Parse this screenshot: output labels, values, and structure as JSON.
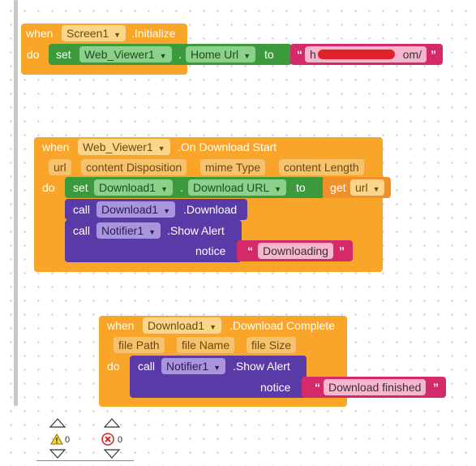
{
  "block1": {
    "when": "when",
    "component": "Screen1",
    "event": ".Initialize",
    "do": "do",
    "set": "set",
    "target": "Web_Viewer1",
    "dot": ".",
    "property": "Home Url",
    "to": "to",
    "text_value_start": "h",
    "text_value_end": "om/"
  },
  "block2": {
    "when": "when",
    "component": "Web_Viewer1",
    "event": ".On Download Start",
    "params": [
      "url",
      "content Disposition",
      "mime Type",
      "content Length"
    ],
    "do": "do",
    "set": "set",
    "target": "Download1",
    "dot": ".",
    "property": "Download URL",
    "to": "to",
    "get": "get",
    "get_var": "url",
    "call1": "call",
    "call1_component": "Download1",
    "call1_method": ".Download",
    "call2": "call",
    "call2_component": "Notifier1",
    "call2_method": ".Show Alert",
    "notice": "notice",
    "notice_text": "Downloading"
  },
  "block3": {
    "when": "when",
    "component": "Download1",
    "event": ".Download Complete",
    "params": [
      "file Path",
      "file Name",
      "file Size"
    ],
    "do": "do",
    "call": "call",
    "call_component": "Notifier1",
    "call_method": ".Show Alert",
    "notice": "notice",
    "notice_text": "Download finished"
  },
  "status": {
    "warnings": "0",
    "errors": "0"
  },
  "colors": {
    "event": "#f8a52a",
    "setter": "#3c9a3c",
    "method": "#5a3aa6",
    "text": "#d42a6a"
  }
}
